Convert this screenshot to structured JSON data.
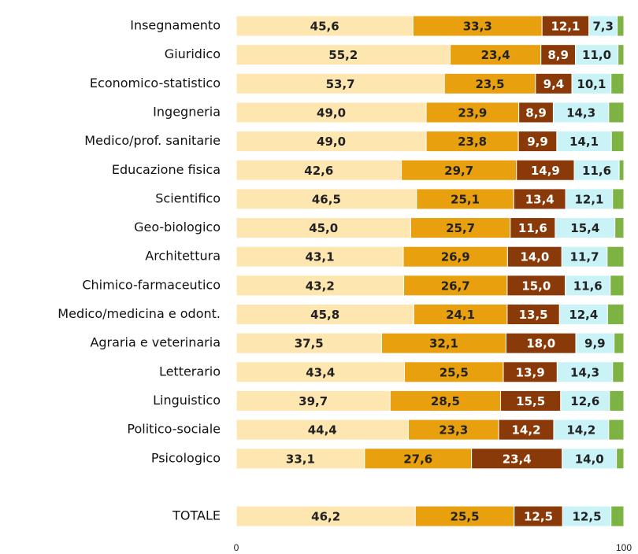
{
  "chart_data": {
    "type": "stacked_barh",
    "categories": [
      "Insegnamento",
      "Giuridico",
      "Economico-statistico",
      "Ingegneria",
      "Medico/prof. sanitarie",
      "Educazione fisica",
      "Scientifico",
      "Geo-biologico",
      "Architettura",
      "Chimico-farmaceutico",
      "Medico/medicina e odont.",
      "Agraria e veterinaria",
      "Letterario",
      "Linguistico",
      "Politico-sociale",
      "Psicologico",
      null,
      "TOTALE"
    ],
    "series": [
      {
        "color": "#fde6b0",
        "label_color": "#222222",
        "values": [
          45.6,
          55.2,
          53.7,
          49.0,
          49.0,
          42.6,
          46.5,
          45.0,
          43.1,
          43.2,
          45.8,
          37.5,
          43.4,
          39.7,
          44.4,
          33.1,
          null,
          46.2
        ],
        "value_labels": [
          "45,6",
          "55,2",
          "53,7",
          "49,0",
          "49,0",
          "42,6",
          "46,5",
          "45,0",
          "43,1",
          "43,2",
          "45,8",
          "37,5",
          "43,4",
          "39,7",
          "44,4",
          "33,1",
          null,
          "46,2"
        ]
      },
      {
        "color": "#e9a00e",
        "label_color": "#222222",
        "values": [
          33.3,
          23.4,
          23.5,
          23.9,
          23.8,
          29.7,
          25.1,
          25.7,
          26.9,
          26.7,
          24.1,
          32.1,
          25.5,
          28.5,
          23.3,
          27.6,
          null,
          25.5
        ],
        "value_labels": [
          "33,3",
          "23,4",
          "23,5",
          "23,9",
          "23,8",
          "29,7",
          "25,1",
          "25,7",
          "26,9",
          "26,7",
          "24,1",
          "32,1",
          "25,5",
          "28,5",
          "23,3",
          "27,6",
          null,
          "25,5"
        ]
      },
      {
        "color": "#8a3a08",
        "label_color": "#ffffff",
        "values": [
          12.1,
          8.9,
          9.4,
          8.9,
          9.9,
          14.9,
          13.4,
          11.6,
          14.0,
          15.0,
          13.5,
          18.0,
          13.9,
          15.5,
          14.2,
          23.4,
          null,
          12.5
        ],
        "value_labels": [
          "12,1",
          "8,9",
          "9,4",
          "8,9",
          "9,9",
          "14,9",
          "13,4",
          "11,6",
          "14,0",
          "15,0",
          "13,5",
          "18,0",
          "13,9",
          "15,5",
          "14,2",
          "23,4",
          null,
          "12,5"
        ]
      },
      {
        "color": "#c9f3f7",
        "label_color": "#222222",
        "values": [
          7.3,
          11.0,
          10.1,
          14.3,
          14.1,
          11.6,
          12.1,
          15.4,
          11.7,
          11.6,
          12.4,
          9.9,
          14.3,
          12.6,
          14.2,
          14.0,
          null,
          12.5
        ],
        "value_labels": [
          "7,3",
          "11,0",
          "10,1",
          "14,3",
          "14,1",
          "11,6",
          "12,1",
          "15,4",
          "11,7",
          "11,6",
          "12,4",
          "9,9",
          "14,3",
          "12,6",
          "14,2",
          "14,0",
          null,
          "12,5"
        ]
      },
      {
        "color": "#7cb342",
        "values": [
          1.7,
          1.5,
          3.3,
          3.9,
          3.2,
          1.2,
          2.9,
          2.3,
          4.3,
          3.5,
          4.2,
          2.5,
          2.9,
          3.7,
          3.9,
          1.9,
          null,
          3.3
        ]
      }
    ],
    "xlim": [
      0,
      100
    ],
    "xticks": [
      0,
      100
    ]
  }
}
